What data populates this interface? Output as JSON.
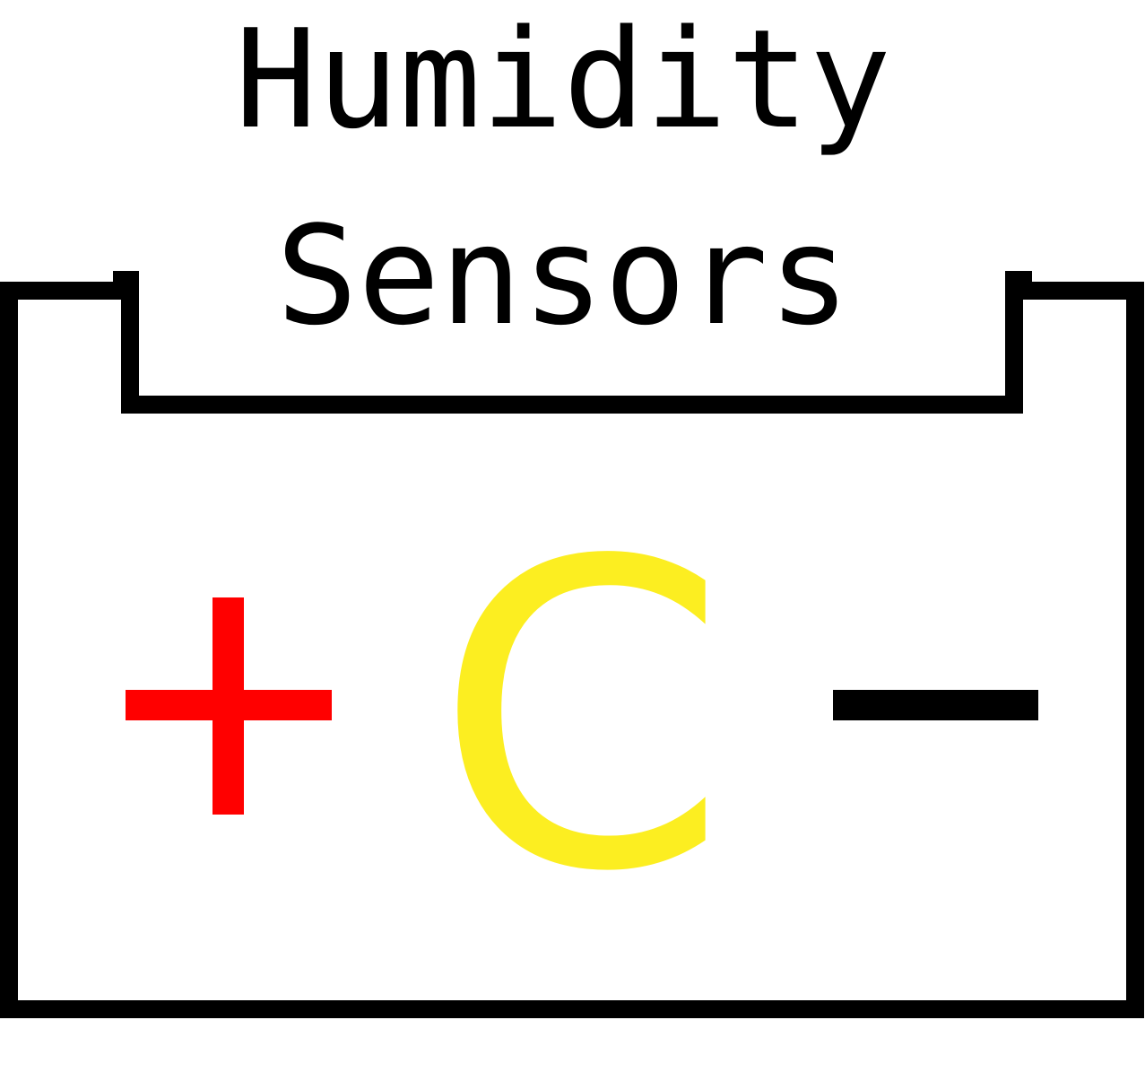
{
  "title": {
    "line1": "Humidity",
    "line2": "Sensors"
  },
  "symbols": {
    "positive": "+",
    "center_letter": "C",
    "negative": "−"
  },
  "colors": {
    "outline": "#000000",
    "positive": "#ff0000",
    "center_letter": "#fcee21",
    "negative": "#000000",
    "background": "#ffffff"
  }
}
